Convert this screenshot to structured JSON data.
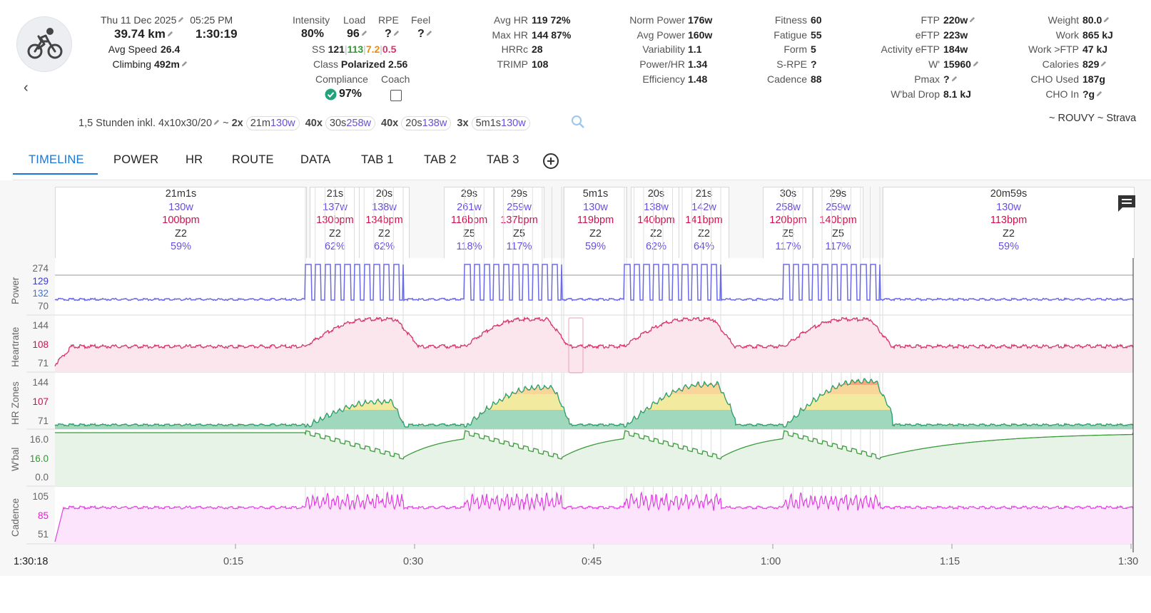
{
  "activity": {
    "date": "Thu 11 Dec 2025",
    "time": "05:25 PM",
    "distance": "39.74 km",
    "duration": "1:30:19",
    "avg_speed_label": "Avg Speed",
    "avg_speed": "26.4",
    "climbing_label": "Climbing",
    "climbing": "492m"
  },
  "metrics": {
    "intensity_label": "Intensity",
    "intensity": "80%",
    "load_label": "Load",
    "load": "96",
    "rpe_label": "RPE",
    "rpe": "?",
    "feel_label": "Feel",
    "feel": "?",
    "ss_label": "SS",
    "ss_total": "121",
    "ss_a": "113",
    "ss_b": "7.2",
    "ss_c": "0.5",
    "class_label": "Class",
    "class_value": "Polarized 2.56",
    "compliance_label": "Compliance",
    "compliance": "97%",
    "coach_label": "Coach"
  },
  "hr": {
    "avg_hr_label": "Avg HR",
    "avg_hr": "119",
    "avg_hr_pct": "72%",
    "max_hr_label": "Max HR",
    "max_hr": "144",
    "max_hr_pct": "87%",
    "hrrc_label": "HRRc",
    "hrrc": "28",
    "trimp_label": "TRIMP",
    "trimp": "108"
  },
  "power": {
    "norm_label": "Norm Power",
    "norm": "176w",
    "avg_label": "Avg Power",
    "avg": "160w",
    "var_label": "Variability",
    "var": "1.1",
    "phr_label": "Power/HR",
    "phr": "1.34",
    "eff_label": "Efficiency",
    "eff": "1.48"
  },
  "fitness": {
    "fitness_label": "Fitness",
    "fitness": "60",
    "fatigue_label": "Fatigue",
    "fatigue": "55",
    "form_label": "Form",
    "form": "5",
    "srpe_label": "S-RPE",
    "srpe": "?",
    "cadence_label": "Cadence",
    "cadence": "88"
  },
  "ftp": {
    "ftp_label": "FTP",
    "ftp": "220w",
    "eftp_label": "eFTP",
    "eftp": "223w",
    "aeftp_label": "Activity eFTP",
    "aeftp": "184w",
    "wprime_label": "W'",
    "wprime": "15960",
    "pmax_label": "Pmax",
    "pmax": "?",
    "wbal_label": "W'bal Drop",
    "wbal": "8.1 kJ"
  },
  "body": {
    "weight_label": "Weight",
    "weight": "80.0",
    "work_label": "Work",
    "work": "865 kJ",
    "workftp_label": "Work >FTP",
    "workftp": "47 kJ",
    "cal_label": "Calories",
    "cal": "829",
    "cho_used_label": "CHO Used",
    "cho_used": "187g",
    "cho_in_label": "CHO In",
    "cho_in": "?g"
  },
  "workout": {
    "name": "1,5 Stunden inkl. 4x10x30/20",
    "tilde": "~",
    "chips": [
      {
        "count": "2x",
        "dur": "21m",
        "watts": "130w"
      },
      {
        "count": "40x",
        "dur": "30s",
        "watts": "258w"
      },
      {
        "count": "40x",
        "dur": "20s",
        "watts": "138w"
      },
      {
        "count": "3x",
        "dur": "5m1s",
        "watts": "130w"
      }
    ],
    "sources": "~ ROUVY ~ Strava"
  },
  "tabs": [
    "TIMELINE",
    "POWER",
    "HR",
    "ROUTE",
    "DATA",
    "TAB 1",
    "TAB 2",
    "TAB 3"
  ],
  "segments": [
    {
      "dur": "21m1s",
      "w": "130w",
      "bpm": "100bpm",
      "z": "Z2",
      "p": "59%"
    },
    {
      "dur": "21s",
      "w": "137w",
      "bpm": "130bpm",
      "z": "Z2",
      "p": "62%"
    },
    {
      "dur": "20s",
      "w": "138w",
      "bpm": "134bpm",
      "z": "Z2",
      "p": "62%"
    },
    {
      "dur": "29s",
      "w": "261w",
      "bpm": "116bpm",
      "z": "Z5",
      "p": "118%"
    },
    {
      "dur": "29s",
      "w": "259w",
      "bpm": "137bpm",
      "z": "Z5",
      "p": "117%"
    },
    {
      "dur": "5m1s",
      "w": "130w",
      "bpm": "119bpm",
      "z": "Z2",
      "p": "59%"
    },
    {
      "dur": "20s",
      "w": "138w",
      "bpm": "140bpm",
      "z": "Z2",
      "p": "62%"
    },
    {
      "dur": "21s",
      "w": "142w",
      "bpm": "141bpm",
      "z": "Z2",
      "p": "64%"
    },
    {
      "dur": "30s",
      "w": "258w",
      "bpm": "120bpm",
      "z": "Z5",
      "p": "117%"
    },
    {
      "dur": "29s",
      "w": "259w",
      "bpm": "140bpm",
      "z": "Z5",
      "p": "117%"
    },
    {
      "dur": "20m59s",
      "w": "130w",
      "bpm": "113bpm",
      "z": "Z2",
      "p": "59%"
    }
  ],
  "charts": {
    "power": {
      "label": "Power",
      "t1": "274",
      "t2": "129",
      "t3": "132",
      "t4": "70"
    },
    "hr": {
      "label": "Heartrate",
      "t1": "144",
      "t2": "108",
      "t3": "71"
    },
    "hrz": {
      "label": "HR Zones",
      "t1": "144",
      "t2": "107",
      "t3": "71"
    },
    "wbal": {
      "label": "W'bal",
      "t1": "16.0",
      "t2": "16.0",
      "t3": "0.0"
    },
    "cad": {
      "label": "Cadence",
      "t1": "105",
      "t2": "85",
      "t3": "51"
    }
  },
  "xaxis": {
    "start": "1:30:18",
    "ticks": [
      "0:15",
      "0:30",
      "0:45",
      "1:00",
      "1:15",
      "1:30"
    ]
  },
  "colors": {
    "accent": "#1976d2",
    "power": "#6a6ae8",
    "hr": "#d6336c",
    "zone_green": "#1ea37a",
    "wbal": "#3a9a3a",
    "cadence": "#e040e0"
  }
}
